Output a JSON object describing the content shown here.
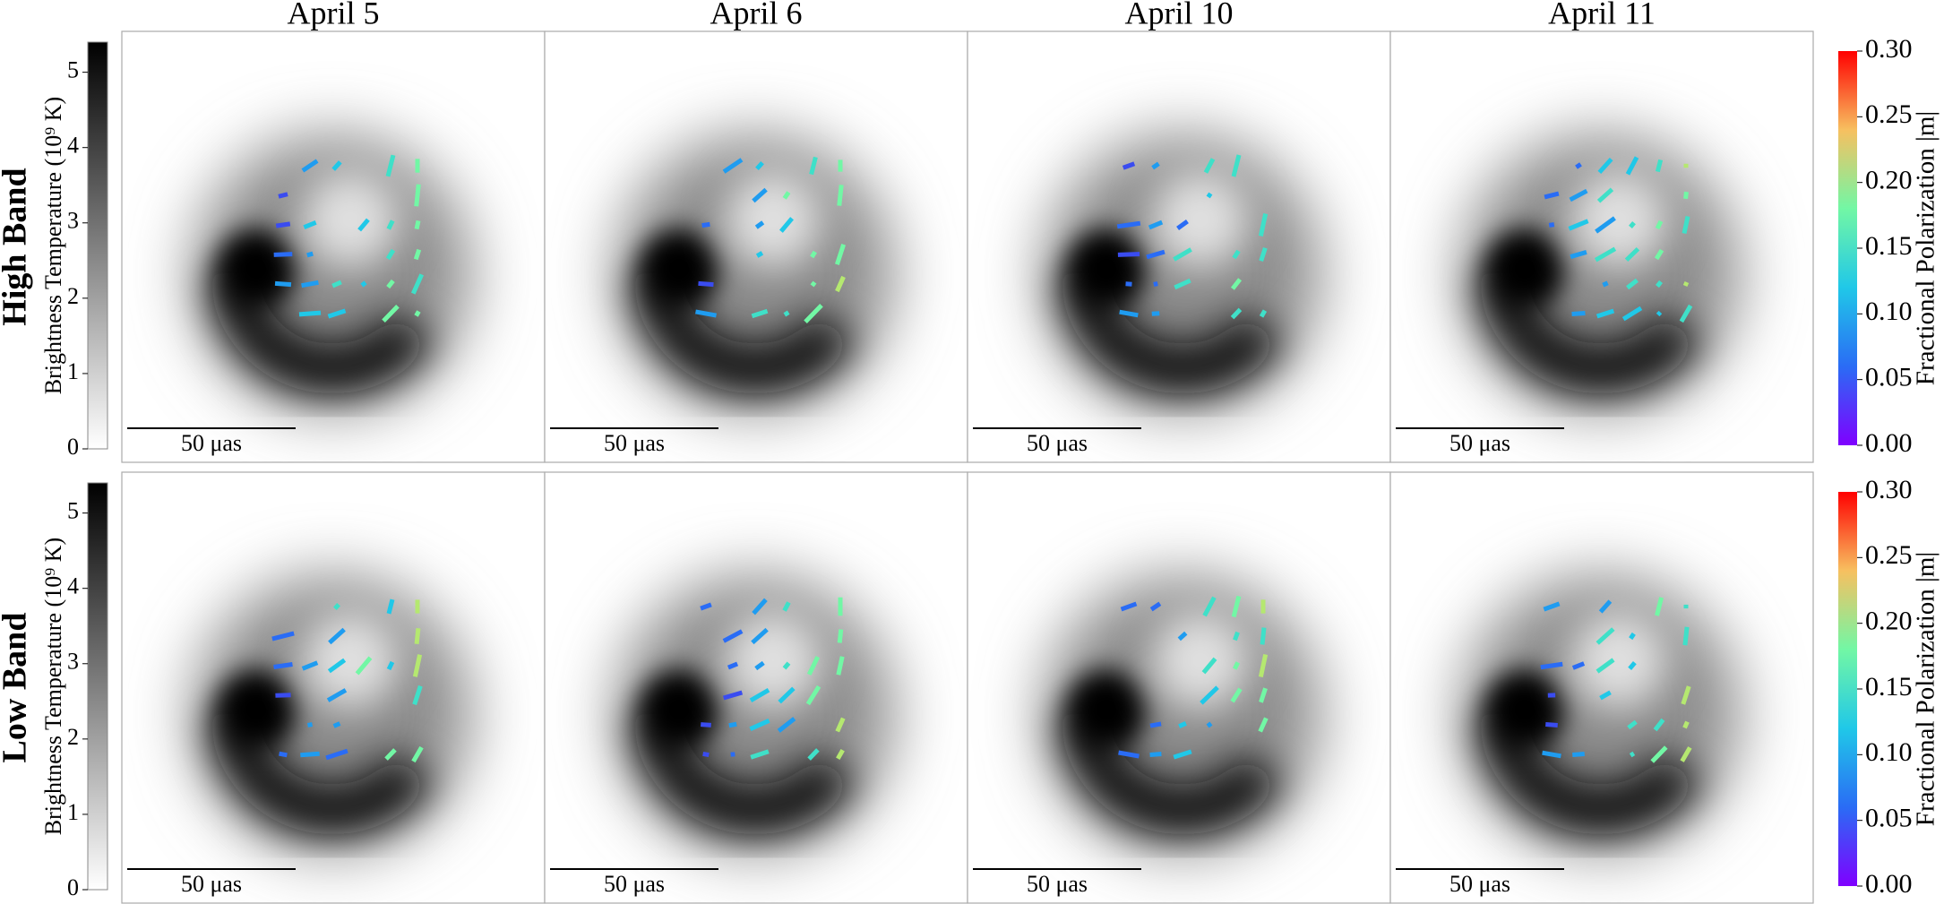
{
  "figure": {
    "columns": [
      "April 5",
      "April 6",
      "April 10",
      "April 11"
    ],
    "rows": [
      "High Band",
      "Low Band"
    ],
    "scale_bar": "50 μas",
    "brightness_colorbar": {
      "label": "Brightness Temperature (10⁹ K)",
      "lim": [
        0,
        5.4
      ],
      "ticks": [
        0,
        1,
        2,
        3,
        4,
        5
      ]
    },
    "polarization_colorbar": {
      "label": "Fractional Polarization |m|",
      "lim": [
        0,
        0.3
      ],
      "ticks": [
        {
          "value": 0,
          "label": "0.00"
        },
        {
          "value": 0.05,
          "label": "0.05"
        },
        {
          "value": 0.1,
          "label": "0.10"
        },
        {
          "value": 0.15,
          "label": "0.15"
        },
        {
          "value": 0.2,
          "label": "0.20"
        },
        {
          "value": 0.25,
          "label": "0.25"
        },
        {
          "value": 0.3,
          "label": "0.30"
        }
      ]
    }
  }
}
